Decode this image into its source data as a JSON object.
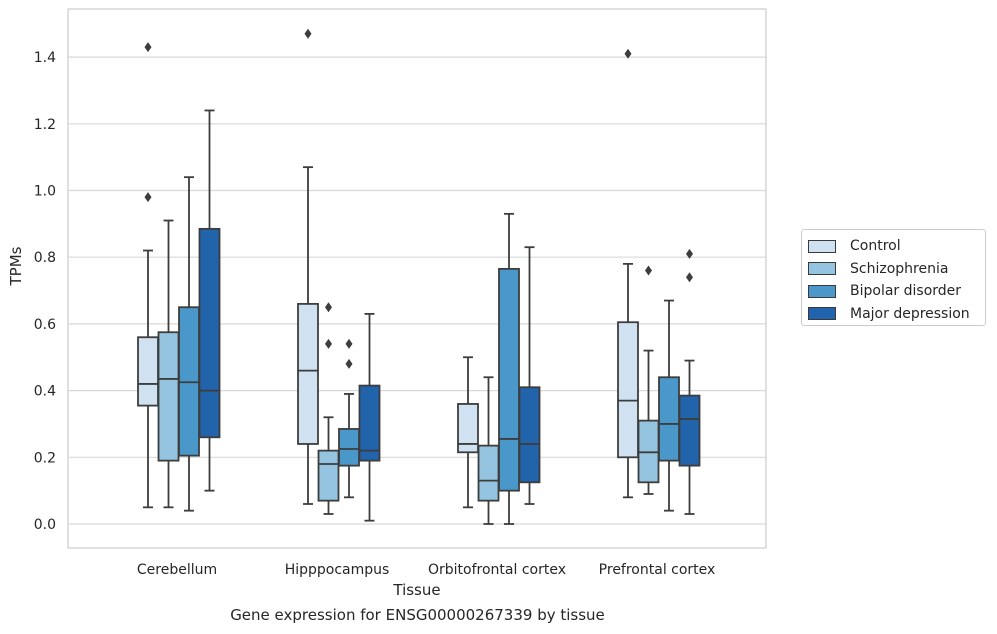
{
  "chart_data": {
    "type": "box",
    "title": "",
    "caption": "Gene expression for ENSG00000267339 by tissue",
    "xlabel": "Tissue",
    "ylabel": "TPMs",
    "ylim": [
      -0.07,
      1.55
    ],
    "yticks": [
      0.0,
      0.2,
      0.4,
      0.6,
      0.8,
      1.0,
      1.2,
      1.4
    ],
    "grid": true,
    "legend_position": "right",
    "categories": [
      "Cerebellum",
      "Hipppocampus",
      "Orbitofrontal cortex",
      "Prefrontal cortex"
    ],
    "series": [
      {
        "name": "Control",
        "color": "#d0e1f2",
        "boxes": [
          {
            "whislo": 0.05,
            "q1": 0.355,
            "med": 0.42,
            "q3": 0.56,
            "whishi": 0.82,
            "fliers": [
              0.98,
              1.43
            ]
          },
          {
            "whislo": 0.06,
            "q1": 0.24,
            "med": 0.46,
            "q3": 0.66,
            "whishi": 1.07,
            "fliers": [
              1.47
            ]
          },
          {
            "whislo": 0.05,
            "q1": 0.215,
            "med": 0.24,
            "q3": 0.36,
            "whishi": 0.5,
            "fliers": []
          },
          {
            "whislo": 0.08,
            "q1": 0.2,
            "med": 0.37,
            "q3": 0.605,
            "whishi": 0.78,
            "fliers": [
              1.41
            ]
          }
        ]
      },
      {
        "name": "Schizophrenia",
        "color": "#94c4df",
        "boxes": [
          {
            "whislo": 0.05,
            "q1": 0.19,
            "med": 0.435,
            "q3": 0.575,
            "whishi": 0.91,
            "fliers": []
          },
          {
            "whislo": 0.03,
            "q1": 0.07,
            "med": 0.18,
            "q3": 0.22,
            "whishi": 0.32,
            "fliers": [
              0.54,
              0.65
            ]
          },
          {
            "whislo": 0.0,
            "q1": 0.07,
            "med": 0.13,
            "q3": 0.235,
            "whishi": 0.44,
            "fliers": []
          },
          {
            "whislo": 0.09,
            "q1": 0.125,
            "med": 0.215,
            "q3": 0.31,
            "whishi": 0.52,
            "fliers": [
              0.76
            ]
          }
        ]
      },
      {
        "name": "Bipolar disorder",
        "color": "#4a98c9",
        "boxes": [
          {
            "whislo": 0.04,
            "q1": 0.205,
            "med": 0.425,
            "q3": 0.65,
            "whishi": 1.04,
            "fliers": []
          },
          {
            "whislo": 0.08,
            "q1": 0.175,
            "med": 0.225,
            "q3": 0.285,
            "whishi": 0.39,
            "fliers": [
              0.48,
              0.54
            ]
          },
          {
            "whislo": 0.0,
            "q1": 0.1,
            "med": 0.255,
            "q3": 0.765,
            "whishi": 0.93,
            "fliers": []
          },
          {
            "whislo": 0.04,
            "q1": 0.19,
            "med": 0.3,
            "q3": 0.44,
            "whishi": 0.67,
            "fliers": []
          }
        ]
      },
      {
        "name": "Major depression",
        "color": "#2164ab",
        "boxes": [
          {
            "whislo": 0.1,
            "q1": 0.26,
            "med": 0.4,
            "q3": 0.885,
            "whishi": 1.24,
            "fliers": []
          },
          {
            "whislo": 0.01,
            "q1": 0.19,
            "med": 0.22,
            "q3": 0.415,
            "whishi": 0.63,
            "fliers": []
          },
          {
            "whislo": 0.06,
            "q1": 0.125,
            "med": 0.24,
            "q3": 0.41,
            "whishi": 0.83,
            "fliers": []
          },
          {
            "whislo": 0.03,
            "q1": 0.175,
            "med": 0.315,
            "q3": 0.385,
            "whishi": 0.49,
            "fliers": [
              0.74,
              0.81
            ]
          }
        ]
      }
    ]
  }
}
